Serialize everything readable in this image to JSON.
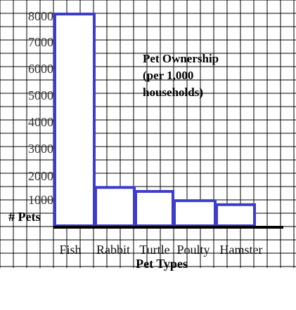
{
  "chart_data": {
    "type": "bar",
    "title_lines": [
      "Pet Ownership",
      "(per 1,000",
      "households)"
    ],
    "xlabel": "Pet Types",
    "ylabel": "# Pets",
    "categories": [
      "Fish",
      "Rabbit",
      "Turtle",
      "Poulty",
      "Hamster"
    ],
    "values": [
      8000,
      1450,
      1300,
      950,
      800
    ],
    "yticks": [
      "8000",
      "7000",
      "6000",
      "5000",
      "4000",
      "3000",
      "2000",
      "1000"
    ],
    "ylim": [
      0,
      8000
    ],
    "grid": true,
    "bar_fill": "#ffffff",
    "bar_stroke": "#3d3dcc",
    "grid_color": "#000000"
  }
}
